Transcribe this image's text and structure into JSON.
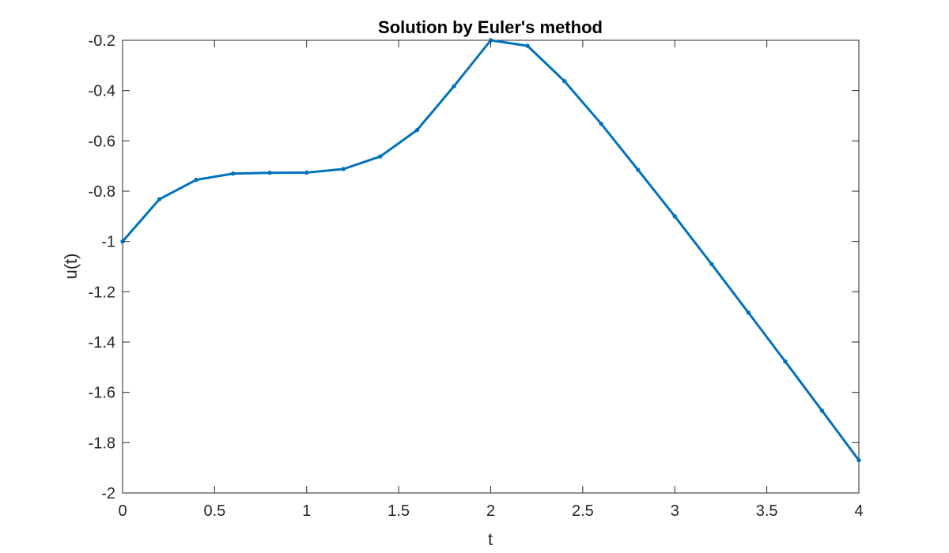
{
  "chart_data": {
    "type": "line",
    "title": "Solution by Euler's method",
    "xlabel": "t",
    "ylabel": "u(t)",
    "xlim": [
      0,
      4
    ],
    "ylim": [
      -2,
      -0.2
    ],
    "xticks": [
      0,
      0.5,
      1,
      1.5,
      2,
      2.5,
      3,
      3.5,
      4
    ],
    "xtick_labels": [
      "0",
      "0.5",
      "1",
      "1.5",
      "2",
      "2.5",
      "3",
      "3.5",
      "4"
    ],
    "yticks": [
      -2,
      -1.8,
      -1.6,
      -1.4,
      -1.2,
      -1,
      -0.8,
      -0.6,
      -0.4,
      -0.2
    ],
    "ytick_labels": [
      "-2",
      "-1.8",
      "-1.6",
      "-1.4",
      "-1.2",
      "-1",
      "-0.8",
      "-0.6",
      "-0.4",
      "-0.2"
    ],
    "grid": false,
    "box": true,
    "series": [
      {
        "color": "#0072BD",
        "x": [
          0,
          0.2,
          0.4,
          0.6,
          0.8,
          1.0,
          1.2,
          1.4,
          1.6,
          1.8,
          2.0,
          2.2,
          2.4,
          2.6,
          2.8,
          3.0,
          3.2,
          3.4,
          3.6,
          3.8,
          4.0
        ],
        "y": [
          -1.0,
          -0.832,
          -0.755,
          -0.73,
          -0.727,
          -0.726,
          -0.712,
          -0.662,
          -0.557,
          -0.383,
          -0.2,
          -0.222,
          -0.362,
          -0.532,
          -0.715,
          -0.9,
          -1.09,
          -1.283,
          -1.477,
          -1.673,
          -1.87
        ]
      }
    ]
  }
}
